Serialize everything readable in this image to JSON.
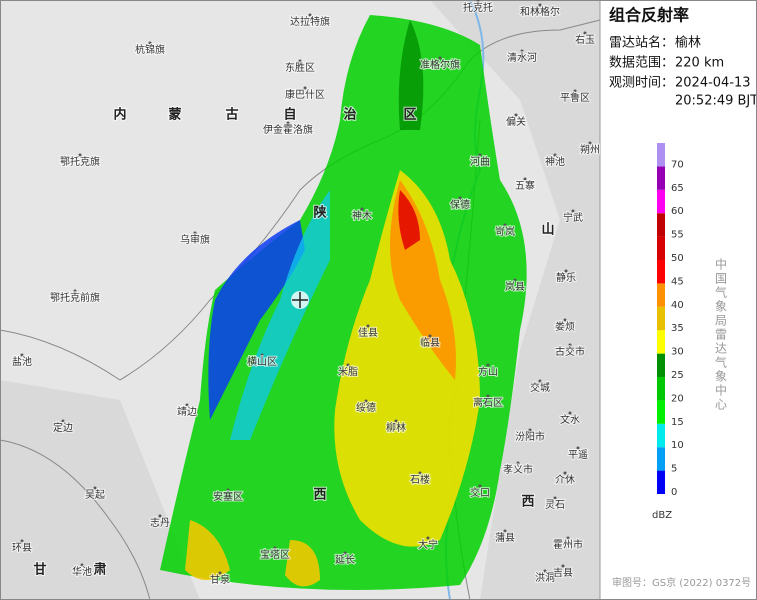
{
  "panel": {
    "title": "组合反射率",
    "rows": [
      {
        "label": "雷达站名：",
        "value": "榆林"
      },
      {
        "label": "数据范围：",
        "value": "220 km"
      },
      {
        "label": "观测时间：",
        "value": "2024-04-13"
      }
    ],
    "time_line2": "20:52:49 BJT"
  },
  "legend": {
    "unit": "dBZ",
    "levels": [
      {
        "label": "0",
        "color": "#0000f6"
      },
      {
        "label": "5",
        "color": "#01a0f6"
      },
      {
        "label": "10",
        "color": "#00ecec"
      },
      {
        "label": "15",
        "color": "#00f000"
      },
      {
        "label": "20",
        "color": "#00c800"
      },
      {
        "label": "25",
        "color": "#009000"
      },
      {
        "label": "30",
        "color": "#ffff00"
      },
      {
        "label": "35",
        "color": "#e7c000"
      },
      {
        "label": "40",
        "color": "#ff9000"
      },
      {
        "label": "45",
        "color": "#ff0000"
      },
      {
        "label": "50",
        "color": "#d60000"
      },
      {
        "label": "55",
        "color": "#c00000"
      },
      {
        "label": "60",
        "color": "#ff00f0"
      },
      {
        "label": "65",
        "color": "#9600b4"
      },
      {
        "label": "70",
        "color": "#ad90f0"
      }
    ]
  },
  "credit": "中国气象局雷达气象中心",
  "footer": "审图号：GS京 (2022) 0372号",
  "provinces": [
    "内",
    "蒙",
    "古",
    "自",
    "治",
    "区",
    "陕",
    "西",
    "山",
    "西",
    "甘",
    "肃"
  ],
  "places": [
    "托克托",
    "和林格尔",
    "右玉",
    "达拉特旗",
    "杭锦旗",
    "东胜区",
    "准格尔旗",
    "清水河",
    "康巴什区",
    "平鲁区",
    "偏关",
    "伊金霍洛旗",
    "朔州",
    "河曲",
    "神池",
    "鄂托克旗",
    "五寨",
    "保德",
    "宁武",
    "乌审旗",
    "岢岚",
    "神木",
    "静乐",
    "岚县",
    "鄂托克前旗",
    "佳县",
    "临县",
    "娄烦",
    "古交市",
    "横山区",
    "米脂",
    "方山",
    "交城",
    "盐池",
    "靖边",
    "绥德",
    "离石区",
    "文水",
    "定边",
    "柳林",
    "汾阳市",
    "平遥",
    "孝义市",
    "石楼",
    "介休",
    "吴起",
    "安塞区",
    "交口",
    "灵石",
    "志丹",
    "宝塔区",
    "大宁",
    "蒲县",
    "霍州市",
    "环县",
    "华池",
    "甘泉",
    "延长",
    "洪洞",
    "吉县"
  ]
}
